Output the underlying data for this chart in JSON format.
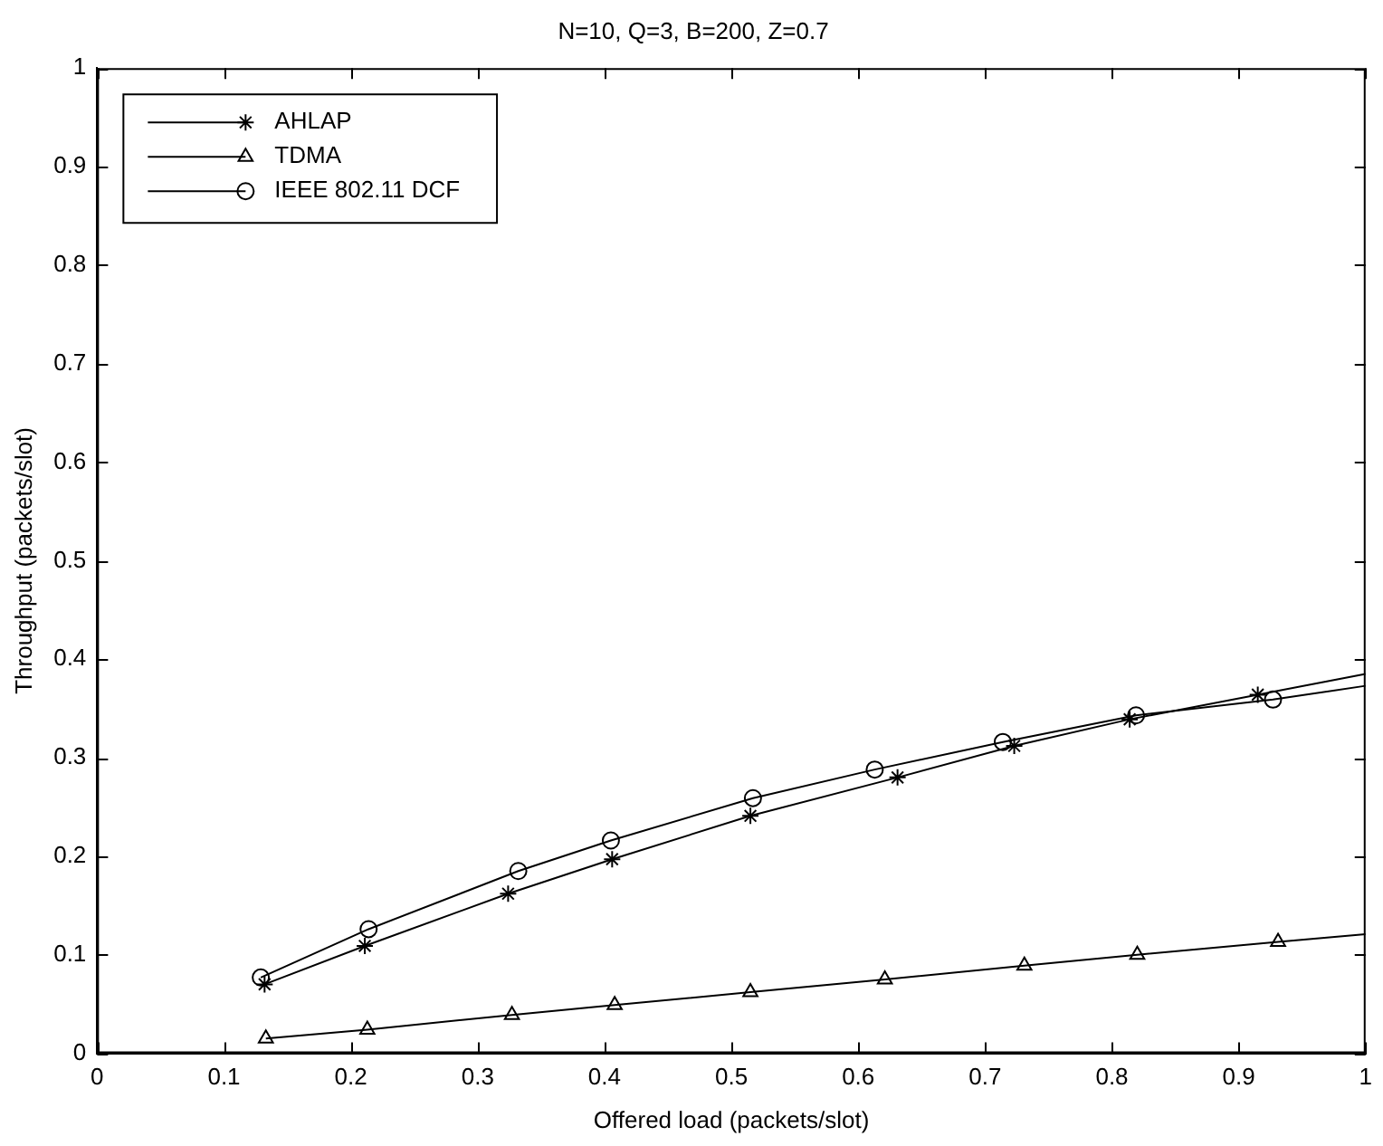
{
  "chart_data": {
    "type": "line",
    "title": "N=10, Q=3, B=200, Z=0.7",
    "xlabel": "Offered load (packets/slot)",
    "ylabel": "Throughput (packets/slot)",
    "series": [
      {
        "name": "AHLAP",
        "color": "#000000",
        "marker": "cross",
        "x": [
          0.132,
          0.211,
          0.324,
          0.406,
          0.515,
          0.631,
          0.723,
          0.814,
          0.915,
          1
        ],
        "values": [
          0.07,
          0.109,
          0.162,
          0.197,
          0.241,
          0.28,
          0.312,
          0.339,
          0.364,
          0.385
        ]
      },
      {
        "name": "TDMA",
        "color": "#000000",
        "marker": "triangle",
        "x": [
          0.133,
          0.213,
          0.327,
          0.408,
          0.515,
          0.621,
          0.731,
          0.82,
          0.931,
          1
        ],
        "values": [
          0.015,
          0.024,
          0.039,
          0.049,
          0.062,
          0.075,
          0.089,
          0.1,
          0.113,
          0.121
        ]
      },
      {
        "name": "IEEE 802.11 DCF",
        "color": "#000000",
        "marker": "circle",
        "x": [
          0.129,
          0.214,
          0.332,
          0.405,
          0.517,
          0.613,
          0.714,
          0.819,
          0.927,
          1
        ],
        "values": [
          0.077,
          0.126,
          0.185,
          0.216,
          0.259,
          0.288,
          0.316,
          0.343,
          0.359,
          0.373
        ]
      }
    ],
    "xlim": [
      0,
      1
    ],
    "xticks": [
      0,
      0.1,
      0.2,
      0.3,
      0.4,
      0.5,
      0.6,
      0.7,
      0.8,
      0.9,
      1
    ],
    "ylim": [
      0,
      1
    ],
    "yticks": [
      0,
      0.1,
      0.2,
      0.3,
      0.4,
      0.5,
      0.6,
      0.7,
      0.8,
      0.9,
      1
    ],
    "legend": "top left",
    "line_style": "solid"
  }
}
